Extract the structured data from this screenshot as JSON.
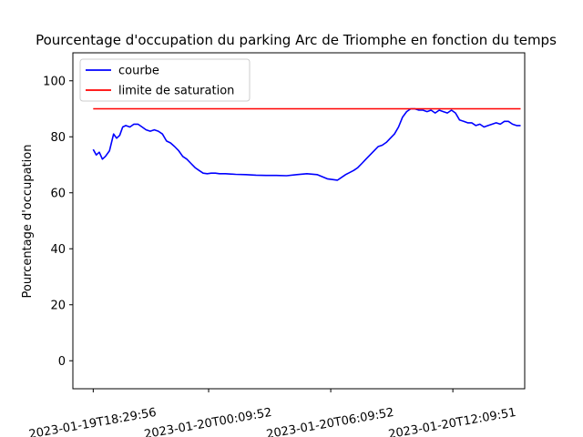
{
  "chart_data": {
    "type": "line",
    "title": "Pourcentage d'occupation du parking Arc de Triomphe en fonction du temps",
    "xlabel": "",
    "ylabel": "Pourcentage d'occupation",
    "ylim": [
      -10,
      110
    ],
    "y_ticks": [
      0,
      20,
      40,
      60,
      80,
      100
    ],
    "x_ticks": [
      "2023-01-19T18:29:56",
      "2023-01-20T00:09:52",
      "2023-01-20T06:09:52",
      "2023-01-20T12:09:51"
    ],
    "x_tick_positions": [
      0,
      5.67,
      11.67,
      17.67
    ],
    "x_unit": "hours since 2023-01-19T18:29:56",
    "xlim": [
      -1,
      21.2
    ],
    "grid": false,
    "legend_position": "upper-left",
    "series": [
      {
        "name": "courbe",
        "color": "#0000ff",
        "x": [
          0,
          0.15,
          0.3,
          0.45,
          0.6,
          0.8,
          1.0,
          1.15,
          1.3,
          1.45,
          1.6,
          1.8,
          2.0,
          2.2,
          2.4,
          2.6,
          2.8,
          3.0,
          3.2,
          3.4,
          3.6,
          3.8,
          4.0,
          4.2,
          4.4,
          4.6,
          4.8,
          5.0,
          5.2,
          5.4,
          5.6,
          5.8,
          6.0,
          6.2,
          6.5,
          7.0,
          7.5,
          8.0,
          8.5,
          9.0,
          9.5,
          10.0,
          10.5,
          11.0,
          11.5,
          12.0,
          12.4,
          12.8,
          13.0,
          13.2,
          13.4,
          13.6,
          13.8,
          14.0,
          14.2,
          14.4,
          14.6,
          14.8,
          15.0,
          15.2,
          15.4,
          15.6,
          15.8,
          16.0,
          16.2,
          16.4,
          16.6,
          16.8,
          17.0,
          17.2,
          17.4,
          17.6,
          17.8,
          18.0,
          18.2,
          18.4,
          18.6,
          18.8,
          19.0,
          19.2,
          19.4,
          19.6,
          19.8,
          20.0,
          20.2,
          20.4,
          20.6,
          20.8,
          21.0
        ],
        "values": [
          75.5,
          73.5,
          74.5,
          72,
          73,
          75,
          81,
          79.5,
          80.5,
          83.5,
          84,
          83.5,
          84.5,
          84.5,
          83.5,
          82.5,
          82,
          82.5,
          82,
          81,
          78.5,
          77.8,
          76.5,
          75,
          73,
          72,
          70.5,
          69,
          68,
          67,
          66.8,
          67,
          67,
          66.8,
          66.8,
          66.6,
          66.5,
          66.3,
          66.2,
          66.2,
          66.1,
          66.5,
          66.8,
          66.5,
          65,
          64.5,
          66.5,
          68,
          69,
          70.5,
          72,
          73.5,
          75,
          76.5,
          77,
          78,
          79.5,
          81,
          83.5,
          87,
          89,
          90,
          90,
          89.5,
          89.5,
          89,
          89.5,
          88.5,
          89.5,
          89,
          88.5,
          89.5,
          88.5,
          86,
          85.5,
          85,
          85,
          84,
          84.5,
          83.5,
          84,
          84.5,
          85,
          84.5,
          85.5,
          85.5,
          84.5,
          84,
          84
        ]
      },
      {
        "name": "limite de saturation",
        "color": "#ff0000",
        "x": [
          0,
          21
        ],
        "values": [
          90,
          90
        ]
      }
    ]
  }
}
